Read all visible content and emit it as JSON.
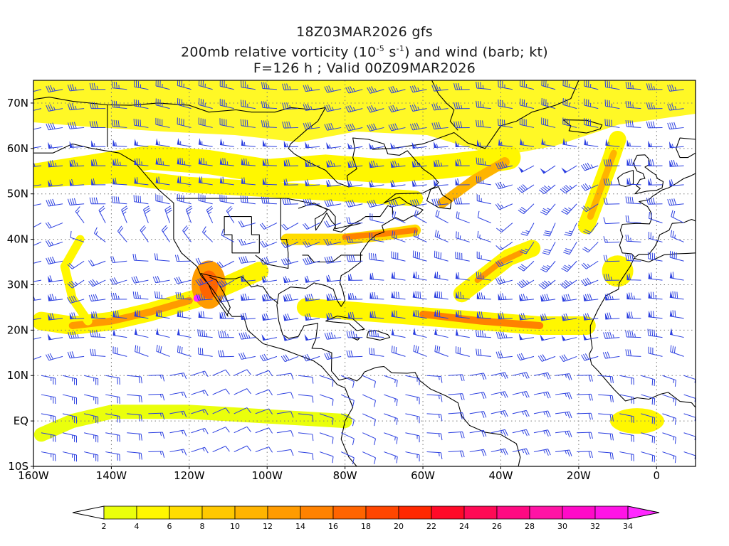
{
  "title": {
    "line1": "18Z03MAR2026 gfs",
    "line2_prefix": "200mb relative vorticity (10",
    "line2_exp1": "-5",
    "line2_mid": " s",
    "line2_exp2": "-1",
    "line2_suffix": ") and wind (barb; kt)",
    "line3": "F=126 h ; Valid 00Z09MAR2026"
  },
  "map": {
    "lon_range": [
      -160,
      10
    ],
    "lat_range": [
      -10,
      75
    ],
    "lat_ticks": [
      {
        "value": 70,
        "label": "70N"
      },
      {
        "value": 60,
        "label": "60N"
      },
      {
        "value": 50,
        "label": "50N"
      },
      {
        "value": 40,
        "label": "40N"
      },
      {
        "value": 30,
        "label": "30N"
      },
      {
        "value": 20,
        "label": "20N"
      },
      {
        "value": 10,
        "label": "10N"
      },
      {
        "value": 0,
        "label": "EQ"
      },
      {
        "value": -10,
        "label": "10S"
      }
    ],
    "lon_ticks": [
      {
        "value": -160,
        "label": "160W"
      },
      {
        "value": -140,
        "label": "140W"
      },
      {
        "value": -120,
        "label": "120W"
      },
      {
        "value": -100,
        "label": "100W"
      },
      {
        "value": -80,
        "label": "80W"
      },
      {
        "value": -60,
        "label": "60W"
      },
      {
        "value": -40,
        "label": "40W"
      },
      {
        "value": -20,
        "label": "20W"
      },
      {
        "value": 0,
        "label": "0"
      }
    ],
    "barb_color": "#2a3ee0",
    "coast_color": "#000000",
    "grid_color": "#7a7a7a"
  },
  "colorbar": {
    "levels": [
      2,
      4,
      6,
      8,
      10,
      12,
      14,
      16,
      18,
      20,
      22,
      24,
      26,
      28,
      30,
      32,
      34
    ],
    "level_labels": [
      "2",
      "4",
      "6",
      "8",
      "10",
      "12",
      "14",
      "16",
      "18",
      "20",
      "22",
      "24",
      "26",
      "28",
      "30",
      "32",
      "34"
    ],
    "colors": [
      "#ffffff",
      "#eaff0c",
      "#fff700",
      "#ffdc00",
      "#ffc800",
      "#ffb400",
      "#ff9b00",
      "#ff8200",
      "#ff6400",
      "#ff4600",
      "#ff2800",
      "#ff0a28",
      "#ff0a55",
      "#ff0a82",
      "#ff14a5",
      "#ff0ac8",
      "#ff14e6",
      "#ff28ff"
    ]
  }
}
